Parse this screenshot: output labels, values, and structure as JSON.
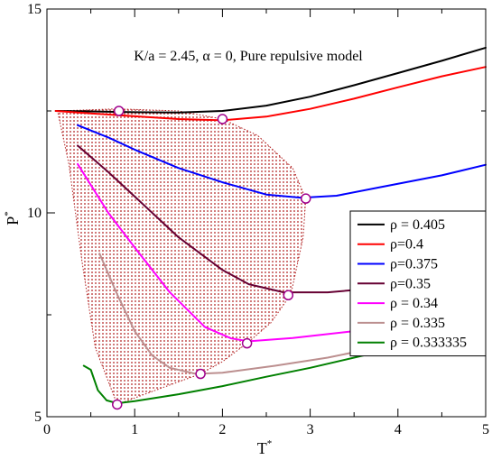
{
  "chart_data": {
    "type": "line",
    "annotation": "K/a = 2.45, α = 0, Pure repulsive model",
    "xlabel": "T",
    "xlabel_sup": "*",
    "ylabel": "P",
    "ylabel_sup": "*",
    "xlim": [
      0,
      5
    ],
    "ylim": [
      5,
      15
    ],
    "x_ticks": [
      0,
      1,
      2,
      3,
      4,
      5
    ],
    "y_ticks": [
      5,
      10,
      15
    ],
    "x_minor_step": 0.5,
    "y_minor_step": 2.5,
    "legend_position": "right",
    "series": [
      {
        "name": "ρ = 0.405",
        "color": "#000000",
        "points": [
          [
            0.1,
            12.5
          ],
          [
            0.5,
            12.49
          ],
          [
            1.0,
            12.47
          ],
          [
            1.5,
            12.46
          ],
          [
            2.0,
            12.5
          ],
          [
            2.5,
            12.63
          ],
          [
            3.0,
            12.85
          ],
          [
            3.5,
            13.13
          ],
          [
            4.0,
            13.43
          ],
          [
            4.5,
            13.73
          ],
          [
            5.0,
            14.05
          ]
        ]
      },
      {
        "name": "ρ=0.4",
        "color": "#ff0000",
        "points": [
          [
            0.1,
            12.5
          ],
          [
            0.5,
            12.44
          ],
          [
            1.0,
            12.37
          ],
          [
            1.5,
            12.3
          ],
          [
            2.0,
            12.27
          ],
          [
            2.5,
            12.36
          ],
          [
            3.0,
            12.55
          ],
          [
            3.5,
            12.8
          ],
          [
            4.0,
            13.08
          ],
          [
            4.5,
            13.35
          ],
          [
            5.0,
            13.58
          ]
        ]
      },
      {
        "name": "ρ=0.375",
        "color": "#0000ff",
        "points": [
          [
            0.35,
            12.15
          ],
          [
            0.7,
            11.85
          ],
          [
            1.0,
            11.55
          ],
          [
            1.5,
            11.1
          ],
          [
            2.0,
            10.75
          ],
          [
            2.5,
            10.45
          ],
          [
            2.9,
            10.37
          ],
          [
            3.3,
            10.42
          ],
          [
            3.8,
            10.63
          ],
          [
            4.5,
            10.92
          ],
          [
            5.0,
            11.18
          ]
        ]
      },
      {
        "name": "ρ=0.35",
        "color": "#660033",
        "points": [
          [
            0.35,
            11.65
          ],
          [
            0.7,
            11.0
          ],
          [
            1.0,
            10.4
          ],
          [
            1.5,
            9.4
          ],
          [
            2.0,
            8.6
          ],
          [
            2.3,
            8.25
          ],
          [
            2.7,
            8.05
          ],
          [
            3.2,
            8.05
          ],
          [
            4.0,
            8.2
          ]
        ]
      },
      {
        "name": "ρ = 0.34",
        "color": "#ff00ff",
        "points": [
          [
            0.35,
            11.2
          ],
          [
            0.7,
            10.0
          ],
          [
            1.0,
            9.15
          ],
          [
            1.4,
            8.05
          ],
          [
            1.8,
            7.2
          ],
          [
            2.1,
            6.92
          ],
          [
            2.3,
            6.85
          ],
          [
            2.8,
            6.93
          ],
          [
            3.5,
            7.1
          ],
          [
            4.0,
            7.25
          ]
        ]
      },
      {
        "name": "ρ = 0.335",
        "color": "#bc8f8f",
        "points": [
          [
            0.6,
            9.0
          ],
          [
            0.8,
            8.0
          ],
          [
            1.0,
            7.1
          ],
          [
            1.2,
            6.5
          ],
          [
            1.4,
            6.2
          ],
          [
            1.7,
            6.05
          ],
          [
            2.0,
            6.08
          ],
          [
            2.6,
            6.25
          ],
          [
            3.2,
            6.45
          ],
          [
            4.0,
            6.8
          ]
        ]
      },
      {
        "name": "ρ = 0.333335",
        "color": "#008000",
        "points": [
          [
            0.42,
            6.25
          ],
          [
            0.5,
            6.15
          ],
          [
            0.58,
            5.65
          ],
          [
            0.68,
            5.4
          ],
          [
            0.8,
            5.33
          ],
          [
            1.0,
            5.38
          ],
          [
            1.5,
            5.55
          ],
          [
            2.0,
            5.75
          ],
          [
            2.5,
            5.98
          ],
          [
            3.0,
            6.2
          ],
          [
            3.5,
            6.45
          ],
          [
            4.0,
            6.7
          ]
        ]
      }
    ],
    "markers": [
      [
        0.82,
        12.5
      ],
      [
        2.0,
        12.3
      ],
      [
        2.95,
        10.35
      ],
      [
        2.75,
        7.98
      ],
      [
        2.28,
        6.8
      ],
      [
        1.75,
        6.05
      ],
      [
        0.8,
        5.3
      ]
    ],
    "shaded_region": {
      "description": "hatched coexistence region",
      "color": "#b01c1c",
      "boundary": [
        [
          0.12,
          12.5
        ],
        [
          0.8,
          12.55
        ],
        [
          1.5,
          12.5
        ],
        [
          2.0,
          12.3
        ],
        [
          2.4,
          11.9
        ],
        [
          2.8,
          11.1
        ],
        [
          2.95,
          10.35
        ],
        [
          2.92,
          9.4
        ],
        [
          2.78,
          8.0
        ],
        [
          2.55,
          7.3
        ],
        [
          2.28,
          6.8
        ],
        [
          2.0,
          6.35
        ],
        [
          1.75,
          6.05
        ],
        [
          1.3,
          5.7
        ],
        [
          0.8,
          5.3
        ],
        [
          0.55,
          6.7
        ],
        [
          0.4,
          8.8
        ],
        [
          0.25,
          11.2
        ],
        [
          0.12,
          12.5
        ]
      ]
    }
  }
}
